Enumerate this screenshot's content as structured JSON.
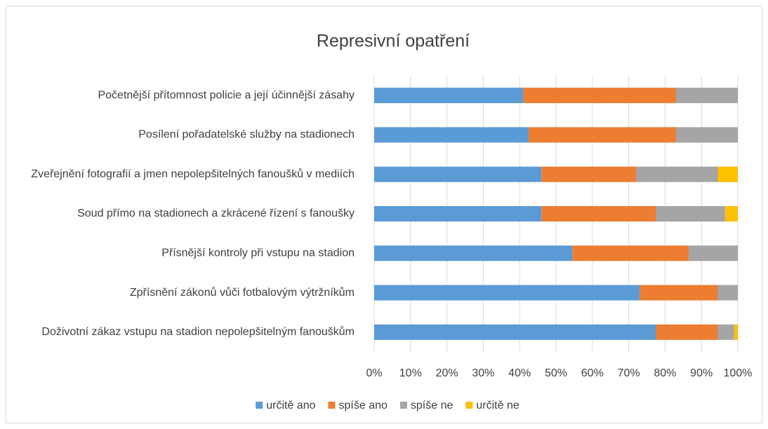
{
  "chart_data": {
    "type": "stacked-bar-horizontal",
    "title": "Represivní opatření",
    "categories": [
      "Početnější přítomnost policie a její účinnější zásahy",
      "Posílení pořadatelské služby na stadionech",
      "Zveřejnění fotografií a jmen nepolepšitelných fanoušků v mediích",
      "Soud přímo na stadionech a zkrácené řízení s fanoušky",
      "Přísnější kontroly při vstupu na stadion",
      "Zpřísnění zákonů vůči fotbalovým výtržníkům",
      "Doživotní zákaz vstupu na stadion nepolepšitelným fanouškům"
    ],
    "series": [
      {
        "name": "určitě ano",
        "color": "#5b9bd5",
        "values": [
          41,
          42.5,
          46,
          46,
          54.5,
          73,
          77.5
        ]
      },
      {
        "name": "spíše ano",
        "color": "#ed7d31",
        "values": [
          42,
          40.5,
          26,
          31.5,
          32,
          21.5,
          17
        ]
      },
      {
        "name": "spíše ne",
        "color": "#a5a5a5",
        "values": [
          17,
          17,
          22.5,
          19,
          13.5,
          5.5,
          4.5
        ]
      },
      {
        "name": "určitě ne",
        "color": "#ffc000",
        "values": [
          0,
          0,
          5.5,
          3.5,
          0,
          0,
          1
        ]
      }
    ],
    "xlim": [
      0,
      100
    ],
    "xticks": [
      {
        "value": 0,
        "label": "0%"
      },
      {
        "value": 10,
        "label": "10%"
      },
      {
        "value": 20,
        "label": "20%"
      },
      {
        "value": 30,
        "label": "30%"
      },
      {
        "value": 40,
        "label": "40%"
      },
      {
        "value": 50,
        "label": "50%"
      },
      {
        "value": 60,
        "label": "60%"
      },
      {
        "value": 70,
        "label": "70%"
      },
      {
        "value": 80,
        "label": "80%"
      },
      {
        "value": 90,
        "label": "90%"
      },
      {
        "value": 100,
        "label": "100%"
      }
    ],
    "grid": true,
    "legend": "bottom"
  }
}
